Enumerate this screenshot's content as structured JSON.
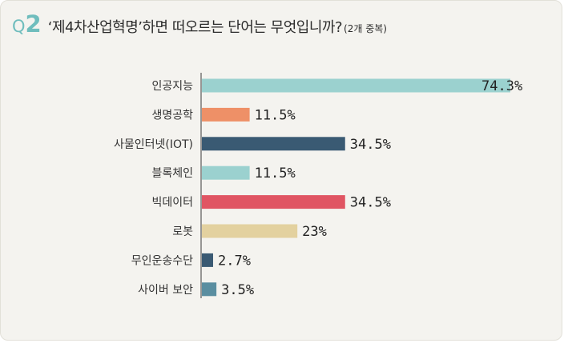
{
  "header": {
    "q_letter": "Q",
    "q_number": "2",
    "question": "‘제4차산업혁명’하면 떠오르는 단어는 무엇입니까?",
    "note": "(2개 중복)"
  },
  "chart_data": {
    "type": "bar",
    "orientation": "horizontal",
    "categories": [
      "인공지능",
      "생명공학",
      "사물인터넷(IOT)",
      "블록체인",
      "빅데이터",
      "로봇",
      "무인운송수단",
      "사이버 보안"
    ],
    "values": [
      74.3,
      11.5,
      34.5,
      11.5,
      34.5,
      23,
      2.7,
      3.5
    ],
    "value_labels": [
      "74.3%",
      "11.5%",
      "34.5%",
      "11.5%",
      "34.5%",
      "23%",
      "2.7%",
      "3.5%"
    ],
    "colors": [
      "#9bd1cf",
      "#ee9067",
      "#3a5a73",
      "#9bd1cf",
      "#e05563",
      "#e3d19f",
      "#3a5a73",
      "#5a8ea0"
    ],
    "xlim": [
      0,
      80
    ],
    "grid": false,
    "legend": "none"
  }
}
